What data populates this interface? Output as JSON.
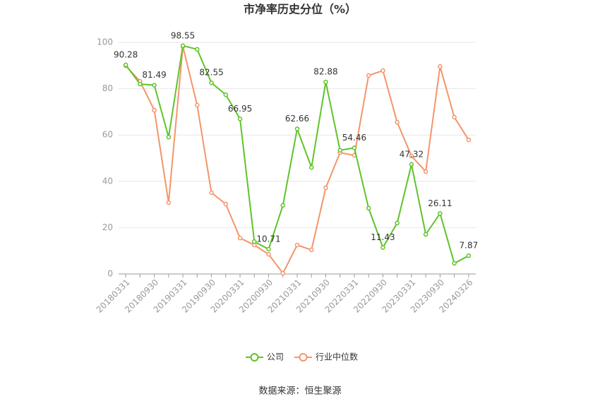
{
  "chart_data": {
    "type": "line",
    "title": "市净率历史分位（%）",
    "categories": [
      "20180331",
      null,
      "20180930",
      null,
      "20190331",
      null,
      "20190930",
      null,
      "20200331",
      null,
      "20200930",
      null,
      "20210331",
      null,
      "20210930",
      null,
      "20220331",
      null,
      "20220930",
      null,
      "20230331",
      null,
      "20230930",
      null,
      "20240326"
    ],
    "series": [
      {
        "name": "公司",
        "color": "#5ec42a",
        "values": [
          90.28,
          82.0,
          81.49,
          59.1,
          98.55,
          97.0,
          82.55,
          77.4,
          66.95,
          14.0,
          10.71,
          29.6,
          62.66,
          46.0,
          82.88,
          53.4,
          54.46,
          28.4,
          11.43,
          22.0,
          47.32,
          17.1,
          26.11,
          4.6,
          7.87
        ],
        "value_labels": [
          "90.28",
          null,
          "81.49",
          null,
          "98.55",
          null,
          "82.55",
          null,
          "66.95",
          null,
          "10.71",
          null,
          "62.66",
          null,
          "82.88",
          null,
          "54.46",
          null,
          "11.43",
          null,
          "47.32",
          null,
          "26.11",
          null,
          "7.87"
        ]
      },
      {
        "name": "行业中位数",
        "color": "#f4956a",
        "values": [
          89.9,
          83.2,
          70.7,
          30.8,
          98.2,
          72.9,
          35.1,
          30.2,
          15.5,
          12.5,
          8.5,
          0.3,
          12.5,
          10.4,
          37.2,
          52.4,
          51.2,
          85.7,
          87.8,
          65.5,
          50.9,
          44.2,
          89.6,
          67.7,
          57.9
        ]
      }
    ],
    "ylim": [
      0,
      100
    ],
    "yticks": [
      0,
      20,
      40,
      60,
      80,
      100
    ],
    "grid": true,
    "source": "数据来源：恒生聚源"
  }
}
